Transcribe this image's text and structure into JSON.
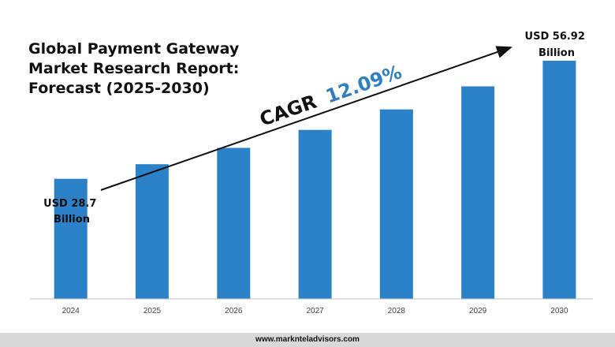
{
  "title_lines": [
    "Global Payment Gateway",
    "Market Research Report:",
    "Forecast (2025-2030)"
  ],
  "footer": "www.marknteladvisors.com",
  "cagr": {
    "prefix": "CAGR",
    "value": "12.09%"
  },
  "annotations": {
    "start": [
      "USD 28.7",
      "Billion"
    ],
    "end": [
      "USD 56.92",
      "Billion"
    ]
  },
  "colors": {
    "bar": "#2c82c9",
    "cagr_value": "#2f7fc1",
    "text": "#111111"
  },
  "chart_data": {
    "type": "bar",
    "categories": [
      "2024",
      "2025",
      "2026",
      "2027",
      "2028",
      "2029",
      "2030"
    ],
    "values": [
      28.7,
      32.2,
      36.1,
      40.4,
      45.3,
      50.8,
      56.92
    ],
    "unit": "USD Billion",
    "ylim": [
      0,
      60
    ],
    "grid": false,
    "legend": "none"
  }
}
